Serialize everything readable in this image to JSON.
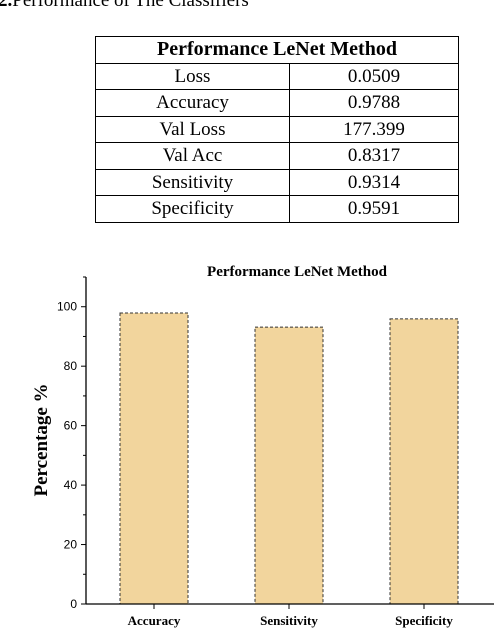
{
  "caption": {
    "number": "2.",
    "text": "Performance of The Classifiers"
  },
  "table": {
    "title": "Performance LeNet Method",
    "rows": [
      [
        "Loss",
        "0.0509"
      ],
      [
        "Accuracy",
        "0.9788"
      ],
      [
        "Val Loss",
        "177.399"
      ],
      [
        "Val Acc",
        "0.8317"
      ],
      [
        "Sensitivity",
        "0.9314"
      ],
      [
        "Specificity",
        "0.9591"
      ]
    ]
  },
  "chart_data": {
    "type": "bar",
    "title": "Performance LeNet Method",
    "xlabel": "",
    "ylabel": "Percentage %",
    "categories": [
      "Accuracy",
      "Sensitivity",
      "Specificity"
    ],
    "values": [
      97.88,
      93.14,
      95.91
    ],
    "ylim": [
      0,
      110
    ],
    "yticks": [
      0,
      20,
      40,
      60,
      80,
      100
    ],
    "grid": false,
    "legend": "none",
    "bar_color": "#f2d59d",
    "bar_border_color": "#333333"
  }
}
